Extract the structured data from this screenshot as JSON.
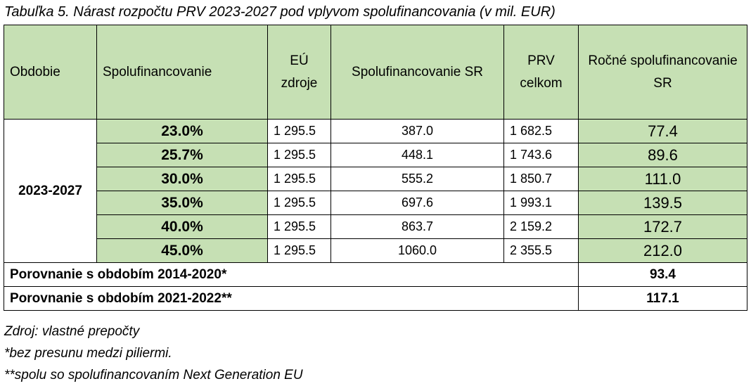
{
  "title": "Tabuľka 5. Nárast rozpočtu PRV 2023-2027 pod vplyvom spolufinancovania (v mil. EUR)",
  "table": {
    "header": [
      "Obdobie",
      "Spolufinancovanie",
      "EÚ zdroje",
      "Spolufinancovanie SR",
      "PRV celkom",
      "Ročné spolufinancovanie SR"
    ],
    "period": "2023-2027",
    "rows": [
      [
        "23.0%",
        "1 295.5",
        "387.0",
        "1 682.5",
        "77.4"
      ],
      [
        "25.7%",
        "1 295.5",
        "448.1",
        "1 743.6",
        "89.6"
      ],
      [
        "30.0%",
        "1 295.5",
        "555.2",
        "1 850.7",
        "111.0"
      ],
      [
        "35.0%",
        "1 295.5",
        "697.6",
        "1 993.1",
        "139.5"
      ],
      [
        "40.0%",
        "1 295.5",
        "863.7",
        "2 159.2",
        "172.7"
      ],
      [
        "45.0%",
        "1 295.5",
        "1060.0",
        "2 355.5",
        "212.0"
      ]
    ],
    "comparisons": [
      {
        "label": "Porovnanie s obdobím 2014-2020*",
        "value": "93.4"
      },
      {
        "label": "Porovnanie s obdobím 2021-2022**",
        "value": "117.1"
      }
    ]
  },
  "notes": [
    "Zdroj: vlastné prepočty",
    "*bez presunu medzi piliermi.",
    "**spolu so spolufinancovaním Next Generation EU"
  ]
}
